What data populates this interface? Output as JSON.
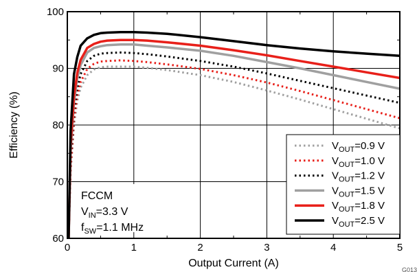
{
  "chart_data": {
    "type": "line",
    "xlabel": "Output Current (A)",
    "ylabel": "Efficiency (%)",
    "xlim": [
      0,
      5
    ],
    "ylim": [
      60,
      100
    ],
    "x_ticks": [
      "0",
      "1",
      "2",
      "3",
      "4",
      "5"
    ],
    "y_ticks": [
      "60",
      "70",
      "80",
      "90",
      "100"
    ],
    "grid": true,
    "legend_position": "bottom-right",
    "conditions": {
      "mode": "FCCM",
      "vin_main": "V",
      "vin_sub": "IN",
      "vin_val": "=3.3 V",
      "fsw_main": "f",
      "fsw_sub": "SW",
      "fsw_val": "=1.1 MHz"
    },
    "figure_code": "G013",
    "legend_main": "V",
    "legend_sub": "OUT",
    "series": [
      {
        "name": "VOUT=0.9 V",
        "label_val": "=0.9 V",
        "color": "#a0a0a0",
        "dash": "dotted",
        "x": [
          0.02,
          0.05,
          0.1,
          0.15,
          0.2,
          0.3,
          0.4,
          0.5,
          0.6,
          0.8,
          1.0,
          1.2,
          1.5,
          2.0,
          2.5,
          3.0,
          3.5,
          4.0,
          4.5,
          5.0
        ],
        "y": [
          60,
          71.5,
          80,
          84.3,
          86.6,
          88.8,
          89.8,
          90.2,
          90.3,
          90.3,
          90.3,
          90.1,
          89.7,
          88.8,
          87.6,
          86.1,
          84.5,
          82.8,
          81.1,
          79.4
        ]
      },
      {
        "name": "VOUT=1.0 V",
        "label_val": "=1.0 V",
        "color": "#e8201a",
        "dash": "dotted",
        "x": [
          0.02,
          0.05,
          0.1,
          0.15,
          0.2,
          0.3,
          0.4,
          0.5,
          0.6,
          0.8,
          1.0,
          1.2,
          1.5,
          2.0,
          2.5,
          3.0,
          3.5,
          4.0,
          4.5,
          5.0
        ],
        "y": [
          60,
          72.5,
          81,
          85.3,
          87.6,
          89.9,
          90.8,
          91.2,
          91.3,
          91.4,
          91.3,
          91.1,
          90.7,
          89.9,
          88.8,
          87.5,
          86.0,
          84.4,
          82.8,
          81.2
        ]
      },
      {
        "name": "VOUT=1.2 V",
        "label_val": "=1.2 V",
        "color": "#000000",
        "dash": "dotted",
        "x": [
          0.02,
          0.05,
          0.1,
          0.15,
          0.2,
          0.3,
          0.4,
          0.5,
          0.6,
          0.8,
          1.0,
          1.2,
          1.5,
          2.0,
          2.5,
          3.0,
          3.5,
          4.0,
          4.5,
          5.0
        ],
        "y": [
          60,
          74,
          82.5,
          86.6,
          89,
          91.3,
          92.2,
          92.6,
          92.7,
          92.8,
          92.7,
          92.5,
          92.1,
          91.3,
          90.3,
          89.1,
          87.8,
          86.5,
          85.2,
          83.9
        ]
      },
      {
        "name": "VOUT=1.5 V",
        "label_val": "=1.5 V",
        "color": "#a0a0a0",
        "dash": "solid",
        "x": [
          0.02,
          0.05,
          0.1,
          0.15,
          0.2,
          0.3,
          0.4,
          0.5,
          0.6,
          0.8,
          1.0,
          1.2,
          1.5,
          2.0,
          2.5,
          3.0,
          3.5,
          4.0,
          4.5,
          5.0
        ],
        "y": [
          60,
          75.5,
          84,
          88.3,
          90.6,
          92.8,
          93.6,
          93.9,
          94.1,
          94.2,
          94.2,
          94.0,
          93.7,
          93.1,
          92.2,
          91.1,
          90.0,
          88.8,
          87.6,
          86.4
        ]
      },
      {
        "name": "VOUT=1.8 V",
        "label_val": "=1.8 V",
        "color": "#e8201a",
        "dash": "solid",
        "x": [
          0.02,
          0.05,
          0.1,
          0.15,
          0.2,
          0.3,
          0.4,
          0.5,
          0.6,
          0.8,
          1.0,
          1.2,
          1.5,
          2.0,
          2.5,
          3.0,
          3.5,
          4.0,
          4.5,
          5.0
        ],
        "y": [
          60,
          76.5,
          85,
          89.2,
          91.5,
          93.6,
          94.3,
          94.7,
          94.9,
          95.0,
          95.0,
          94.9,
          94.6,
          94.0,
          93.2,
          92.3,
          91.3,
          90.3,
          89.3,
          88.3
        ]
      },
      {
        "name": "VOUT=2.5 V",
        "label_val": "=2.5 V",
        "color": "#000000",
        "dash": "solid",
        "x": [
          0.02,
          0.05,
          0.1,
          0.15,
          0.2,
          0.3,
          0.4,
          0.5,
          0.6,
          0.8,
          1.0,
          1.2,
          1.5,
          2.0,
          2.5,
          3.0,
          3.5,
          4.0,
          4.5,
          5.0
        ],
        "y": [
          60,
          79,
          89,
          92,
          94,
          95.3,
          95.9,
          96.2,
          96.3,
          96.4,
          96.4,
          96.3,
          96.1,
          95.5,
          94.8,
          94.1,
          93.5,
          93.0,
          92.6,
          92.2
        ]
      }
    ]
  }
}
